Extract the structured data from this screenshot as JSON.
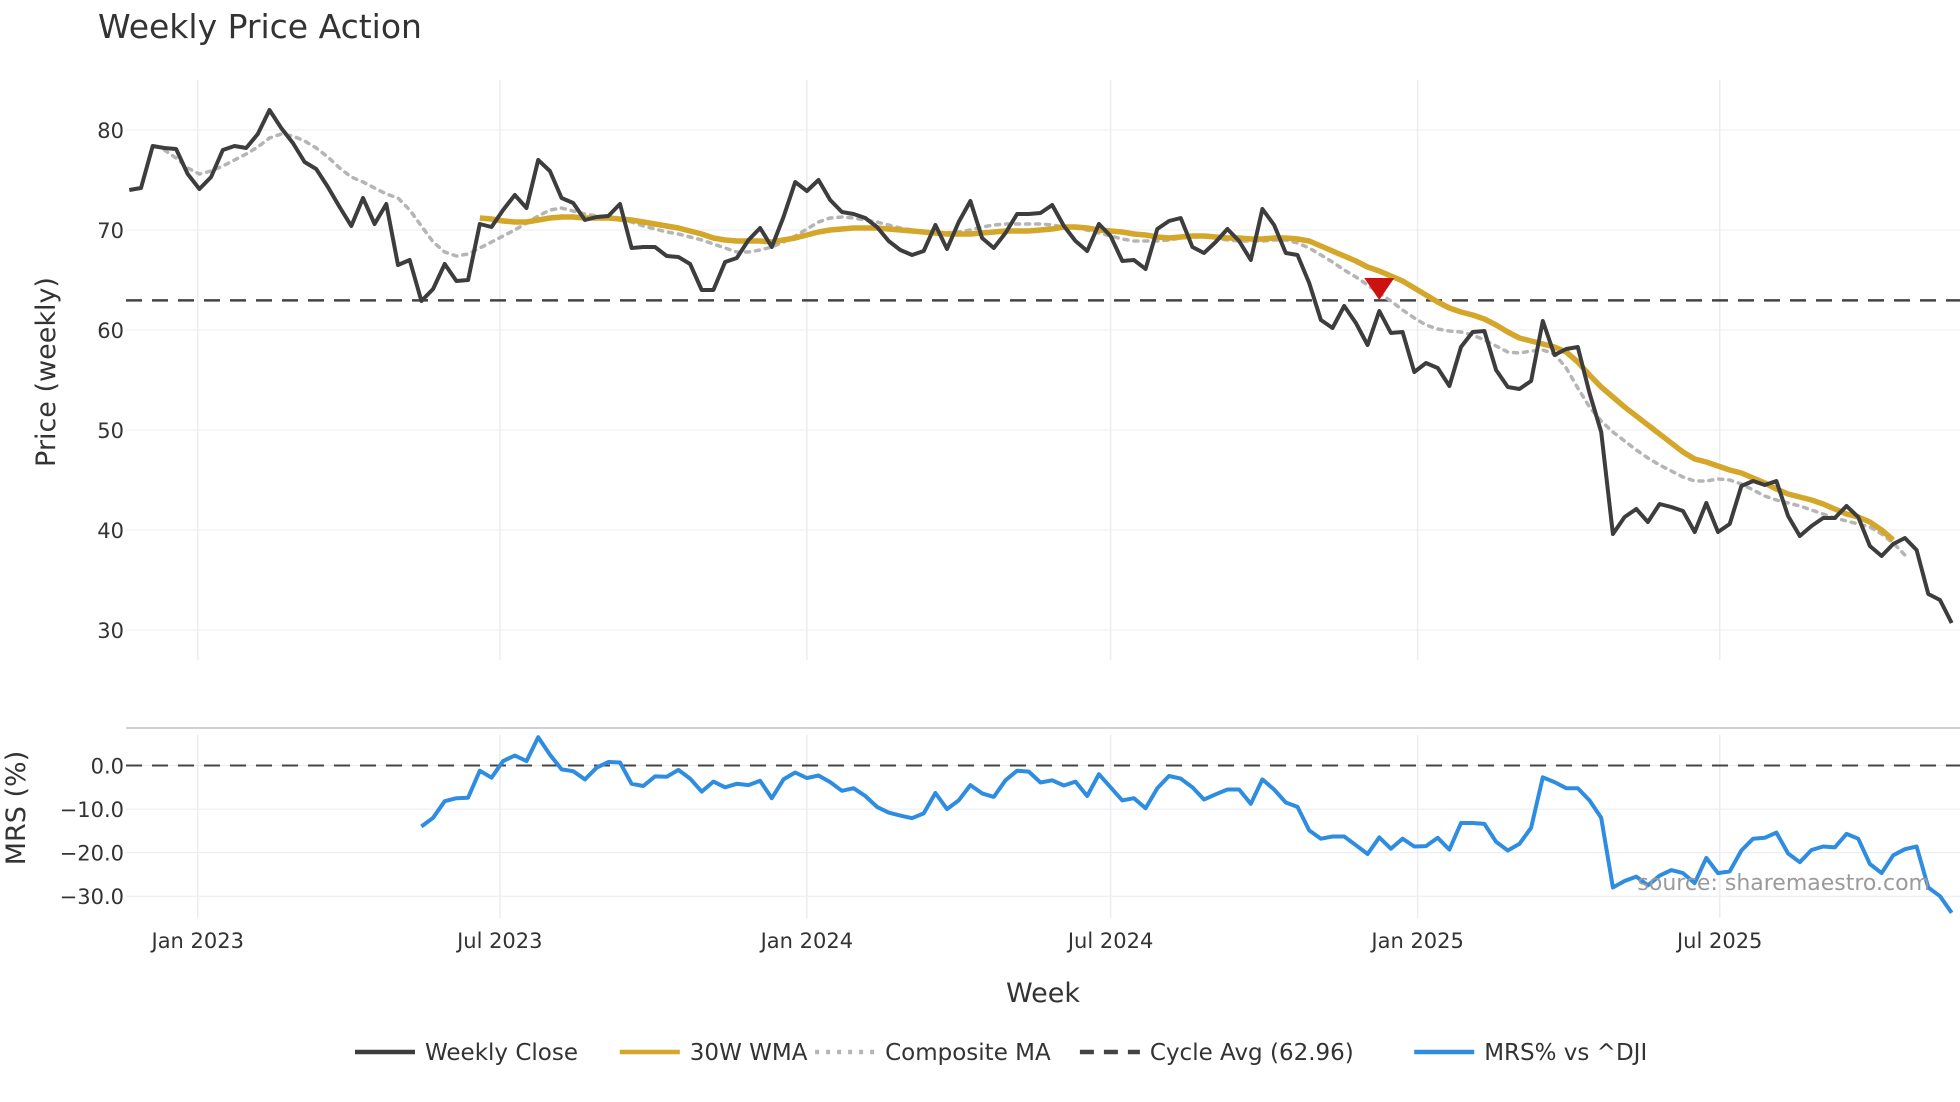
{
  "title": "Weekly Price Action",
  "source": "source: sharemaestro.com",
  "colors": {
    "close": "#3d3d3d",
    "wma": "#d4a62a",
    "composite": "#b5b5b5",
    "cycle": "#444444",
    "mrs": "#2e8de0",
    "signal": "#cc1111",
    "grid": "#ececf1"
  },
  "chart_data": [
    {
      "type": "line",
      "title": "Weekly Price Action",
      "xlabel": "Week",
      "ylabel": "Price (weekly)",
      "ylim": [
        27,
        85
      ],
      "yticks": [
        30,
        40,
        50,
        60,
        70,
        80
      ],
      "x_start": "2022-11-21",
      "x_step_days": 7,
      "x_range": [
        "2022-11-19",
        "2025-11-22"
      ],
      "x_tick_dates": [
        "2023-01-01",
        "2023-07-01",
        "2024-01-01",
        "2024-07-01",
        "2025-01-01",
        "2025-07-01"
      ],
      "x_tick_labels": [
        "Jan 2023",
        "Jul 2023",
        "Jan 2024",
        "Jul 2024",
        "Jan 2025",
        "Jul 2025"
      ],
      "series": [
        {
          "name": "Weekly Close",
          "style": "solid",
          "values": [
            74.0,
            74.2,
            78.4,
            78.2,
            78.1,
            75.6,
            74.1,
            75.3,
            78.0,
            78.4,
            78.2,
            79.6,
            82.0,
            80.2,
            78.7,
            76.8,
            76.1,
            74.3,
            72.3,
            70.4,
            73.2,
            70.6,
            72.6,
            66.5,
            67.0,
            62.9,
            64.1,
            66.6,
            64.9,
            65.0,
            70.6,
            70.3,
            72.0,
            73.5,
            72.2,
            77.0,
            75.9,
            73.2,
            72.7,
            71.0,
            71.3,
            71.4,
            72.6,
            68.2,
            68.3,
            68.3,
            67.4,
            67.3,
            66.6,
            64.0,
            64.0,
            66.8,
            67.2,
            69.0,
            70.2,
            68.3,
            71.3,
            74.8,
            73.9,
            75.0,
            73.0,
            71.8,
            71.6,
            71.2,
            70.3,
            68.9,
            68.0,
            67.5,
            67.9,
            70.5,
            68.1,
            70.8,
            72.9,
            69.2,
            68.2,
            69.7,
            71.6,
            71.6,
            71.7,
            72.5,
            70.4,
            68.9,
            67.9,
            70.6,
            69.4,
            66.9,
            67.0,
            66.1,
            70.1,
            70.9,
            71.2,
            68.3,
            67.7,
            68.8,
            70.1,
            68.9,
            67.0,
            72.1,
            70.5,
            67.7,
            67.5,
            64.7,
            61.0,
            60.2,
            62.4,
            60.7,
            58.5,
            61.9,
            59.7,
            59.8,
            55.8,
            56.7,
            56.2,
            54.4,
            58.3,
            59.8,
            59.9,
            56.0,
            54.3,
            54.1,
            54.9,
            60.9,
            57.5,
            58.1,
            58.3,
            53.7,
            49.8,
            39.6,
            41.3,
            42.1,
            40.8,
            42.6,
            42.3,
            41.9,
            39.8,
            42.7,
            39.8,
            40.6,
            44.4,
            44.9,
            44.5,
            44.9,
            41.4,
            39.4,
            40.4,
            41.2,
            41.2,
            42.4,
            41.3,
            38.4,
            37.4,
            38.6,
            39.2,
            38.0,
            33.6,
            33.0,
            30.7
          ]
        },
        {
          "name": "30W WMA",
          "style": "solid",
          "start_index": 30,
          "values": [
            71.2,
            71.1,
            70.9,
            70.8,
            70.8,
            71.0,
            71.2,
            71.3,
            71.3,
            71.2,
            71.2,
            71.2,
            71.1,
            71.0,
            70.8,
            70.6,
            70.4,
            70.2,
            69.9,
            69.6,
            69.2,
            69.0,
            68.9,
            68.9,
            68.9,
            68.8,
            69.0,
            69.2,
            69.5,
            69.8,
            70.0,
            70.1,
            70.2,
            70.2,
            70.2,
            70.1,
            70.0,
            69.9,
            69.8,
            69.7,
            69.6,
            69.6,
            69.6,
            69.7,
            69.8,
            69.9,
            69.9,
            69.9,
            70.0,
            70.1,
            70.3,
            70.3,
            70.2,
            70.0,
            69.9,
            69.8,
            69.6,
            69.5,
            69.3,
            69.2,
            69.3,
            69.4,
            69.4,
            69.3,
            69.2,
            69.2,
            69.1,
            69.1,
            69.2,
            69.2,
            69.1,
            68.9,
            68.4,
            67.9,
            67.4,
            66.9,
            66.3,
            65.9,
            65.4,
            64.9,
            64.2,
            63.5,
            62.8,
            62.2,
            61.8,
            61.5,
            61.1,
            60.5,
            59.8,
            59.2,
            58.9,
            58.6,
            58.3,
            57.8,
            56.8,
            55.5,
            54.3,
            53.3,
            52.3,
            51.4,
            50.5,
            49.6,
            48.7,
            47.8,
            47.1,
            46.8,
            46.4,
            46.0,
            45.7,
            45.2,
            44.7,
            44.1,
            43.6,
            43.3,
            43.0,
            42.6,
            42.1,
            41.6,
            41.3,
            40.8,
            40.0,
            39.0
          ]
        },
        {
          "name": "Composite MA",
          "style": "dotted",
          "start_index": 3,
          "values": [
            78.0,
            77.2,
            76.2,
            75.6,
            75.9,
            76.4,
            77.0,
            77.6,
            78.3,
            79.2,
            79.6,
            79.4,
            78.9,
            78.2,
            77.3,
            76.2,
            75.3,
            74.8,
            74.2,
            73.6,
            73.2,
            72.0,
            70.4,
            68.8,
            67.8,
            67.4,
            67.6,
            68.2,
            68.8,
            69.4,
            70.0,
            70.7,
            71.4,
            72.0,
            72.2,
            71.9,
            71.6,
            71.4,
            71.3,
            71.0,
            70.8,
            70.4,
            70.1,
            69.8,
            69.6,
            69.3,
            69.0,
            68.6,
            68.2,
            67.8,
            67.8,
            68.0,
            68.3,
            68.8,
            69.4,
            70.1,
            70.8,
            71.2,
            71.3,
            71.2,
            71.0,
            70.8,
            70.5,
            70.2,
            70.0,
            69.8,
            69.7,
            69.7,
            69.8,
            70.0,
            70.3,
            70.5,
            70.6,
            70.6,
            70.6,
            70.6,
            70.5,
            70.3,
            70.2,
            70.0,
            69.7,
            69.4,
            69.1,
            68.9,
            68.9,
            68.9,
            69.0,
            69.2,
            69.3,
            69.3,
            69.2,
            69.0,
            68.9,
            68.9,
            68.9,
            69.0,
            69.0,
            68.7,
            68.2,
            67.5,
            66.8,
            66.0,
            65.3,
            64.5,
            63.7,
            62.9,
            62.0,
            61.2,
            60.5,
            60.1,
            59.9,
            59.8,
            59.5,
            59.0,
            58.4,
            57.8,
            57.7,
            57.9,
            58.0,
            57.6,
            56.2,
            54.2,
            52.3,
            50.9,
            49.8,
            48.9,
            48.0,
            47.2,
            46.5,
            45.9,
            45.3,
            44.9,
            44.9,
            45.1,
            45.0,
            44.6,
            44.0,
            43.4,
            43.0,
            42.7,
            42.4,
            42.0,
            41.6,
            41.2,
            40.9,
            40.6,
            40.3,
            39.6,
            38.7,
            37.5
          ]
        }
      ],
      "reference_line": {
        "name": "Cycle Avg (62.96)",
        "value": 62.96,
        "style": "dashed"
      },
      "markers": [
        {
          "name": "sell-signal",
          "shape": "down-triangle",
          "x_index": 107,
          "value": 64.1
        }
      ]
    },
    {
      "type": "line",
      "xlabel": "Week",
      "ylabel": "MRS (%)",
      "ylim": [
        -35,
        7
      ],
      "yticks": [
        0,
        -10,
        -20,
        -30
      ],
      "ytick_labels": [
        "0.0",
        "−10.0",
        "−20.0",
        "−30.0"
      ],
      "reference_line": {
        "value": 0,
        "style": "dashed"
      },
      "series": [
        {
          "name": "MRS% vs ^DJI",
          "style": "solid",
          "start_index": 25,
          "values": [
            -14.0,
            -12.0,
            -8.2,
            -7.5,
            -7.4,
            -1.2,
            -2.8,
            1.0,
            2.3,
            1.0,
            6.5,
            2.5,
            -0.9,
            -1.3,
            -3.2,
            -0.5,
            0.8,
            0.7,
            -4.2,
            -4.7,
            -2.5,
            -2.6,
            -1.0,
            -3.0,
            -6.0,
            -3.7,
            -5.0,
            -4.2,
            -4.5,
            -3.5,
            -7.5,
            -3.2,
            -1.6,
            -2.9,
            -2.3,
            -3.8,
            -5.8,
            -5.2,
            -7.0,
            -9.5,
            -10.8,
            -11.5,
            -12.1,
            -11.0,
            -6.3,
            -10.0,
            -8.0,
            -4.5,
            -6.4,
            -7.2,
            -3.4,
            -1.2,
            -1.4,
            -3.9,
            -3.4,
            -4.6,
            -3.7,
            -7.0,
            -2.0,
            -5.0,
            -8.0,
            -7.5,
            -9.8,
            -5.2,
            -2.4,
            -3.0,
            -5.0,
            -7.8,
            -6.6,
            -5.5,
            -5.5,
            -8.8,
            -3.2,
            -5.5,
            -8.5,
            -9.5,
            -14.9,
            -16.8,
            -16.3,
            -16.3,
            -18.3,
            -20.3,
            -16.5,
            -19.1,
            -16.8,
            -18.6,
            -18.5,
            -16.6,
            -19.3,
            -13.2,
            -13.2,
            -13.4,
            -17.5,
            -19.5,
            -18.0,
            -14.3,
            -2.7,
            -3.8,
            -5.2,
            -5.2,
            -8.0,
            -12.0,
            -28.0,
            -26.5,
            -25.5,
            -27.5,
            -25.3,
            -24.0,
            -24.7,
            -27.0,
            -21.2,
            -24.7,
            -24.3,
            -19.5,
            -16.8,
            -16.6,
            -15.4,
            -20.2,
            -22.2,
            -19.4,
            -18.6,
            -18.8,
            -15.7,
            -16.8,
            -22.6,
            -24.7,
            -20.6,
            -19.2,
            -18.6,
            -28.0,
            -30.0,
            -33.8
          ]
        }
      ]
    }
  ],
  "legend": [
    {
      "label": "Weekly Close",
      "color": "#3d3d3d",
      "style": "solid"
    },
    {
      "label": "30W WMA",
      "color": "#d4a62a",
      "style": "solid"
    },
    {
      "label": "Composite MA",
      "color": "#b5b5b5",
      "style": "dotted"
    },
    {
      "label": "Cycle Avg (62.96)",
      "color": "#444444",
      "style": "dashed"
    },
    {
      "label": "MRS% vs ^DJI",
      "color": "#2e8de0",
      "style": "solid"
    }
  ]
}
